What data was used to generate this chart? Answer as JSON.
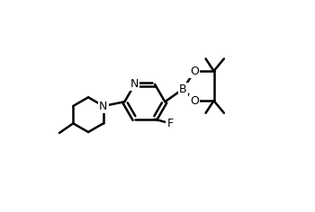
{
  "background_color": "#ffffff",
  "line_color": "#000000",
  "line_width": 1.8,
  "font_size": 9,
  "figsize": [
    3.5,
    2.36
  ],
  "dpi": 100,
  "xlim": [
    0,
    1
  ],
  "ylim": [
    0,
    1
  ]
}
